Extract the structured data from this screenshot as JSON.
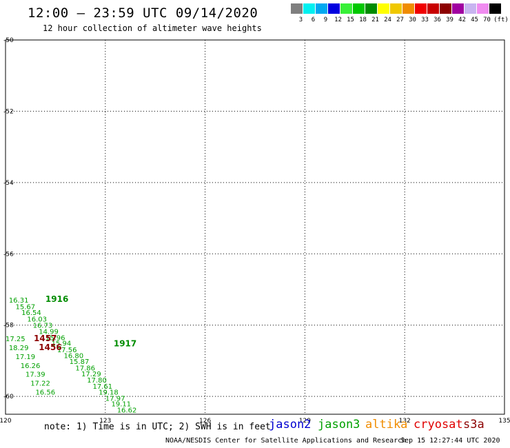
{
  "header": {
    "title": "12:00 — 23:59 UTC 09/14/2020",
    "subtitle": "12 hour collection of altimeter wave heights"
  },
  "legend": {
    "unit": "(ft)",
    "items": [
      {
        "label": "3",
        "color": "#7f7f7f"
      },
      {
        "label": "6",
        "color": "#00f0f0"
      },
      {
        "label": "9",
        "color": "#00a8f0"
      },
      {
        "label": "12",
        "color": "#0000e0"
      },
      {
        "label": "15",
        "color": "#38f038"
      },
      {
        "label": "18",
        "color": "#00c800"
      },
      {
        "label": "21",
        "color": "#008c00"
      },
      {
        "label": "24",
        "color": "#ffff00"
      },
      {
        "label": "27",
        "color": "#f0c800"
      },
      {
        "label": "30",
        "color": "#f08c00"
      },
      {
        "label": "33",
        "color": "#f00000"
      },
      {
        "label": "36",
        "color": "#c80000"
      },
      {
        "label": "39",
        "color": "#8c0000"
      },
      {
        "label": "42",
        "color": "#a000a0"
      },
      {
        "label": "45",
        "color": "#c8b4f0"
      },
      {
        "label": "70",
        "color": "#f08cf0"
      },
      {
        "label": "",
        "color": "#000000"
      }
    ]
  },
  "map": {
    "lon_ticks": [
      "120",
      "123",
      "126",
      "129",
      "132",
      "135"
    ],
    "lat_ticks": [
      "-50",
      "-52",
      "-54",
      "-56",
      "-58",
      "-60"
    ],
    "time_labels": [
      {
        "text": "1916",
        "color": "#008c00",
        "lon": 121.2,
        "lat": -57.35
      },
      {
        "text": "1917",
        "color": "#008c00",
        "lon": 123.25,
        "lat": -58.6
      },
      {
        "text": "1457",
        "color": "#8c0000",
        "lon": 120.85,
        "lat": -58.45
      },
      {
        "text": "1456",
        "color": "#8c0000",
        "lon": 121.0,
        "lat": -58.7
      }
    ],
    "tracks": [
      {
        "name": "jason3",
        "color": "#00a000",
        "points": [
          {
            "v": "16.31",
            "lon": 120.1,
            "lat": -57.37
          },
          {
            "v": "15.67",
            "lon": 120.3,
            "lat": -57.55
          },
          {
            "v": "16.54",
            "lon": 120.48,
            "lat": -57.72
          },
          {
            "v": "16.03",
            "lon": 120.65,
            "lat": -57.9
          },
          {
            "v": "16.73",
            "lon": 120.82,
            "lat": -58.07
          },
          {
            "v": "14.99",
            "lon": 121.0,
            "lat": -58.25
          },
          {
            "v": "15.96",
            "lon": 121.2,
            "lat": -58.42
          },
          {
            "v": "15.94",
            "lon": 121.38,
            "lat": -58.58
          },
          {
            "v": "17.56",
            "lon": 121.55,
            "lat": -58.76
          },
          {
            "v": "16.80",
            "lon": 121.75,
            "lat": -58.92
          },
          {
            "v": "15.87",
            "lon": 121.92,
            "lat": -59.09
          },
          {
            "v": "17.86",
            "lon": 122.1,
            "lat": -59.27
          },
          {
            "v": "17.29",
            "lon": 122.28,
            "lat": -59.44
          },
          {
            "v": "17.80",
            "lon": 122.45,
            "lat": -59.61
          },
          {
            "v": "17.61",
            "lon": 122.62,
            "lat": -59.78
          },
          {
            "v": "19.18",
            "lon": 122.8,
            "lat": -59.95
          },
          {
            "v": "17.97",
            "lon": 123.0,
            "lat": -60.12
          },
          {
            "v": "19.11",
            "lon": 123.18,
            "lat": -60.28
          },
          {
            "v": "16.62",
            "lon": 123.35,
            "lat": -60.45
          }
        ]
      },
      {
        "name": "jason3-b",
        "color": "#00a000",
        "points": [
          {
            "v": "17.25",
            "lon": 120.0,
            "lat": -58.45
          },
          {
            "v": "18.29",
            "lon": 120.1,
            "lat": -58.7
          },
          {
            "v": "17.19",
            "lon": 120.3,
            "lat": -58.95
          },
          {
            "v": "16.26",
            "lon": 120.45,
            "lat": -59.2
          },
          {
            "v": "17.39",
            "lon": 120.6,
            "lat": -59.45
          },
          {
            "v": "17.22",
            "lon": 120.75,
            "lat": -59.7
          },
          {
            "v": "16.56",
            "lon": 120.9,
            "lat": -59.95
          }
        ]
      }
    ]
  },
  "note": "note: 1) Time is in UTC; 2) SWH is in feet",
  "satellites": [
    {
      "label": "jason2",
      "color": "#0000d0"
    },
    {
      "label": "jason3",
      "color": "#00a000"
    },
    {
      "label": "altika",
      "color": "#f08c00"
    },
    {
      "label": "cryosat",
      "color": "#e00000"
    },
    {
      "label": "s3a",
      "color": "#8c0000"
    }
  ],
  "footer": {
    "credit": "NOAA/NESDIS Center for Satellite Applications and Research",
    "timestamp": "Sep 15 12:27:44 UTC 2020"
  }
}
